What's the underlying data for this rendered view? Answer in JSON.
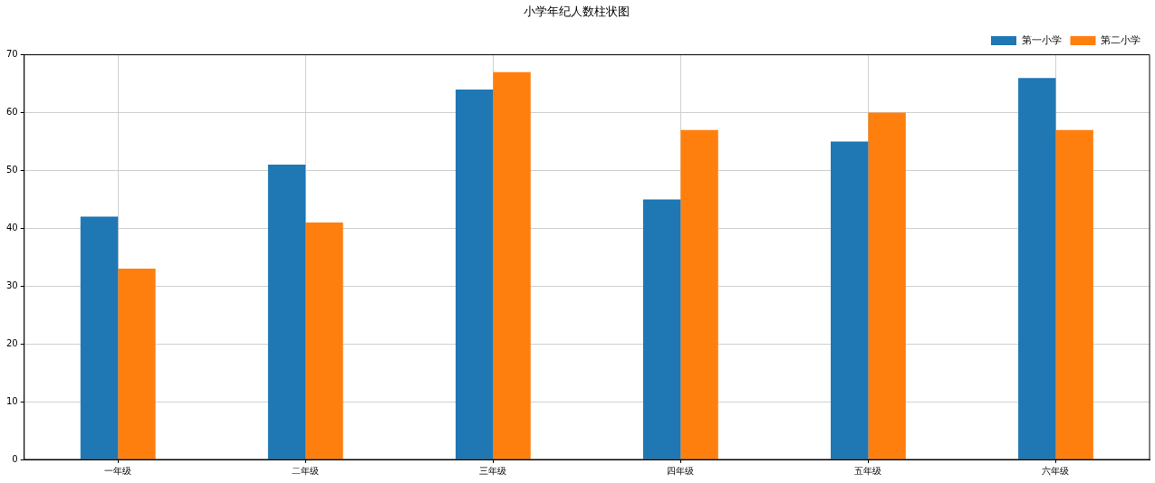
{
  "chart_data": {
    "type": "bar",
    "title": "小学年纪人数柱状图",
    "categories": [
      "一年级",
      "二年级",
      "三年级",
      "四年级",
      "五年级",
      "六年级"
    ],
    "series": [
      {
        "name": "第一小学",
        "color": "#1f77b4",
        "values": [
          42,
          51,
          64,
          45,
          55,
          66
        ]
      },
      {
        "name": "第二小学",
        "color": "#ff7f0e",
        "values": [
          33,
          41,
          67,
          57,
          60,
          57
        ]
      }
    ],
    "ylim": [
      0,
      70
    ],
    "yticks": [
      0,
      10,
      20,
      30,
      40,
      50,
      60,
      70
    ],
    "grid": true,
    "legend": "top right"
  }
}
